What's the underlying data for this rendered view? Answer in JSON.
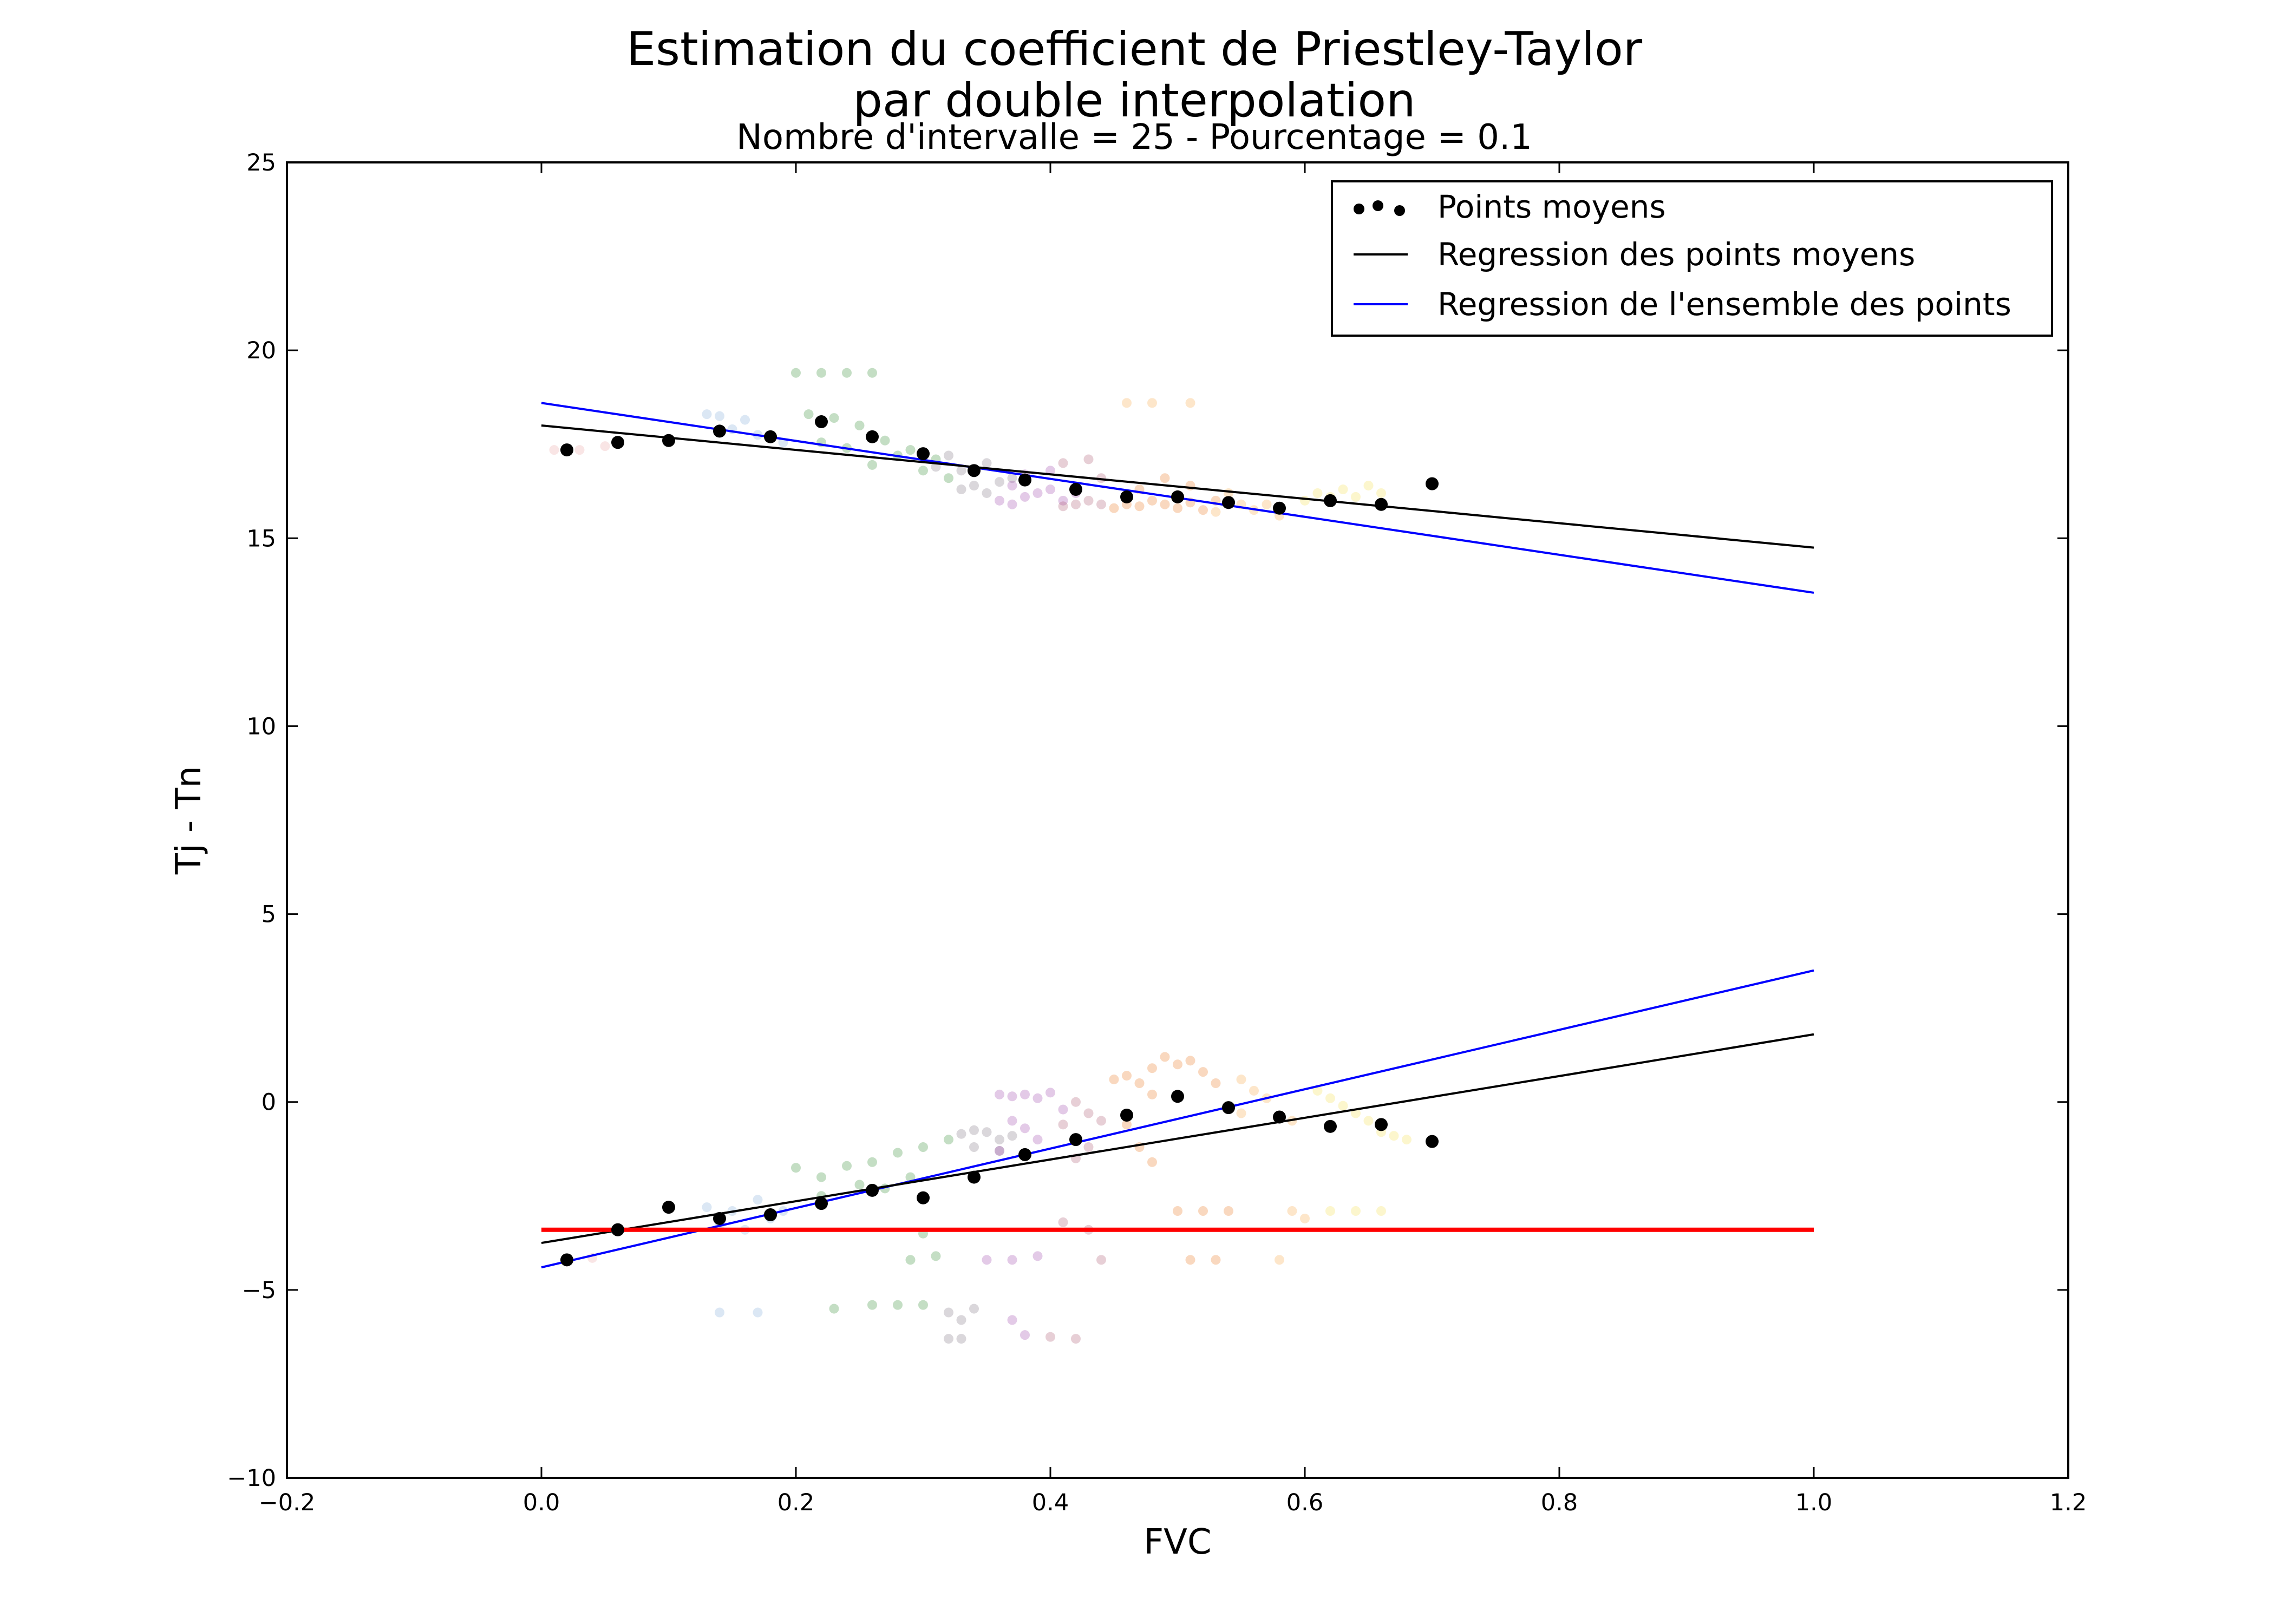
{
  "chart_data": {
    "type": "scatter",
    "title_line1": "Estimation du coefficient de Priestley-Taylor",
    "title_line2": "par     double interpolation",
    "subtitle": "Nombre d'intervalle = 25 - Pourcentage = 0.1",
    "xlabel": "FVC",
    "ylabel": "Tj - Tn",
    "xlim": [
      -0.2,
      1.2
    ],
    "ylim": [
      -10,
      25
    ],
    "xticks": [
      -0.2,
      0.0,
      0.2,
      0.4,
      0.6,
      0.8,
      1.0,
      1.2
    ],
    "xtick_labels": [
      "−0.2",
      "0.0",
      "0.2",
      "0.4",
      "0.6",
      "0.8",
      "1.0",
      "1.2"
    ],
    "yticks": [
      -10,
      -5,
      0,
      5,
      10,
      15,
      20,
      25
    ],
    "ytick_labels": [
      "−10",
      "−5",
      "0",
      "5",
      "10",
      "15",
      "20",
      "25"
    ],
    "grid": false,
    "legend_position": "top-right",
    "legend": [
      {
        "label": "Points moyens",
        "marker": "dot",
        "color": "#000000"
      },
      {
        "label": "Regression des points moyens",
        "marker": "line",
        "color": "#000000"
      },
      {
        "label": "Regression de l'ensemble des points",
        "marker": "line",
        "color": "#0000ff"
      }
    ],
    "mean_points_upper": {
      "x": [
        0.02,
        0.06,
        0.1,
        0.14,
        0.18,
        0.22,
        0.26,
        0.3,
        0.34,
        0.38,
        0.42,
        0.46,
        0.5,
        0.54,
        0.58,
        0.62,
        0.66,
        0.7
      ],
      "y": [
        17.35,
        17.55,
        17.6,
        17.85,
        17.7,
        18.1,
        17.7,
        17.25,
        16.8,
        16.55,
        16.3,
        16.1,
        16.1,
        15.95,
        15.8,
        16.0,
        15.9,
        16.45
      ]
    },
    "mean_points_lower": {
      "x": [
        0.02,
        0.06,
        0.1,
        0.14,
        0.18,
        0.22,
        0.26,
        0.3,
        0.34,
        0.38,
        0.42,
        0.46,
        0.5,
        0.54,
        0.58,
        0.62,
        0.66,
        0.7
      ],
      "y": [
        -4.2,
        -3.4,
        -2.8,
        -3.1,
        -3.0,
        -2.7,
        -2.35,
        -2.55,
        -2.0,
        -1.4,
        -1.0,
        -0.35,
        0.15,
        -0.15,
        -0.4,
        -0.65,
        -0.6,
        -1.05
      ]
    },
    "regression_mean_upper": {
      "x": [
        0.0,
        1.0
      ],
      "y": [
        18.0,
        14.75
      ]
    },
    "regression_mean_lower": {
      "x": [
        0.0,
        1.0
      ],
      "y": [
        -3.75,
        1.8
      ]
    },
    "regression_all_upper": {
      "x": [
        0.0,
        1.0
      ],
      "y": [
        18.6,
        13.55
      ]
    },
    "regression_all_lower": {
      "x": [
        0.0,
        1.0
      ],
      "y": [
        -4.4,
        3.5
      ]
    },
    "horizontal_line": {
      "x": [
        0.0,
        1.0
      ],
      "y": -3.4,
      "color": "#ff0000"
    },
    "scatter_groups": [
      {
        "color": "#e8a0a0",
        "points": [
          [
            0.01,
            17.35
          ],
          [
            0.03,
            17.35
          ],
          [
            0.05,
            17.45
          ],
          [
            0.02,
            -4.25
          ],
          [
            0.04,
            -4.15
          ]
        ]
      },
      {
        "color": "#7fa8d8",
        "points": [
          [
            0.13,
            18.3
          ],
          [
            0.14,
            18.25
          ],
          [
            0.16,
            18.15
          ],
          [
            0.15,
            17.9
          ],
          [
            0.17,
            17.75
          ],
          [
            0.19,
            17.55
          ],
          [
            0.13,
            -2.8
          ],
          [
            0.15,
            -2.9
          ],
          [
            0.17,
            -2.6
          ],
          [
            0.19,
            -2.9
          ],
          [
            0.14,
            -3.3
          ],
          [
            0.16,
            -3.4
          ],
          [
            0.18,
            -3.1
          ],
          [
            0.14,
            -5.6
          ],
          [
            0.17,
            -5.6
          ]
        ]
      },
      {
        "color": "#2c8a2c",
        "points": [
          [
            0.2,
            19.4
          ],
          [
            0.22,
            19.4
          ],
          [
            0.24,
            19.4
          ],
          [
            0.26,
            19.4
          ],
          [
            0.21,
            18.3
          ],
          [
            0.23,
            18.2
          ],
          [
            0.25,
            18.0
          ],
          [
            0.27,
            17.6
          ],
          [
            0.29,
            17.35
          ],
          [
            0.31,
            17.1
          ],
          [
            0.26,
            16.95
          ],
          [
            0.28,
            17.2
          ],
          [
            0.3,
            16.8
          ],
          [
            0.32,
            16.6
          ],
          [
            0.24,
            17.4
          ],
          [
            0.22,
            17.55
          ],
          [
            0.2,
            -1.75
          ],
          [
            0.22,
            -2.0
          ],
          [
            0.24,
            -1.7
          ],
          [
            0.26,
            -1.6
          ],
          [
            0.28,
            -1.35
          ],
          [
            0.3,
            -1.2
          ],
          [
            0.32,
            -1.0
          ],
          [
            0.25,
            -2.2
          ],
          [
            0.27,
            -2.3
          ],
          [
            0.29,
            -2.0
          ],
          [
            0.22,
            -2.5
          ],
          [
            0.26,
            -5.4
          ],
          [
            0.28,
            -5.4
          ],
          [
            0.3,
            -5.4
          ],
          [
            0.23,
            -5.5
          ],
          [
            0.31,
            -4.1
          ],
          [
            0.29,
            -4.2
          ],
          [
            0.3,
            -3.5
          ]
        ]
      },
      {
        "color": "#7a6e7e",
        "points": [
          [
            0.33,
            16.3
          ],
          [
            0.34,
            16.4
          ],
          [
            0.35,
            16.2
          ],
          [
            0.36,
            16.5
          ],
          [
            0.33,
            16.8
          ],
          [
            0.35,
            17.0
          ],
          [
            0.37,
            16.6
          ],
          [
            0.31,
            16.9
          ],
          [
            0.32,
            17.2
          ],
          [
            0.34,
            -0.75
          ],
          [
            0.35,
            -0.8
          ],
          [
            0.33,
            -0.85
          ],
          [
            0.36,
            -1.0
          ],
          [
            0.37,
            -0.9
          ],
          [
            0.34,
            -1.2
          ],
          [
            0.36,
            -1.3
          ],
          [
            0.32,
            -5.6
          ],
          [
            0.33,
            -5.8
          ],
          [
            0.34,
            -5.5
          ],
          [
            0.33,
            -6.3
          ],
          [
            0.32,
            -6.3
          ]
        ]
      },
      {
        "color": "#9b3fa8",
        "points": [
          [
            0.36,
            16.0
          ],
          [
            0.37,
            15.9
          ],
          [
            0.38,
            16.1
          ],
          [
            0.39,
            16.2
          ],
          [
            0.4,
            16.3
          ],
          [
            0.41,
            16.0
          ],
          [
            0.37,
            16.4
          ],
          [
            0.38,
            16.7
          ],
          [
            0.4,
            16.8
          ],
          [
            0.42,
            16.2
          ],
          [
            0.36,
            0.2
          ],
          [
            0.37,
            0.15
          ],
          [
            0.38,
            0.2
          ],
          [
            0.39,
            0.1
          ],
          [
            0.4,
            0.25
          ],
          [
            0.41,
            -0.2
          ],
          [
            0.37,
            -0.5
          ],
          [
            0.38,
            -0.7
          ],
          [
            0.39,
            -1.0
          ],
          [
            0.36,
            -1.3
          ],
          [
            0.35,
            -4.2
          ],
          [
            0.37,
            -4.2
          ],
          [
            0.39,
            -4.1
          ],
          [
            0.37,
            -5.8
          ],
          [
            0.38,
            -6.2
          ]
        ]
      },
      {
        "color": "#a8526a",
        "points": [
          [
            0.41,
            15.85
          ],
          [
            0.42,
            15.9
          ],
          [
            0.43,
            16.0
          ],
          [
            0.44,
            15.9
          ],
          [
            0.42,
            16.3
          ],
          [
            0.44,
            16.6
          ],
          [
            0.41,
            17.0
          ],
          [
            0.43,
            17.1
          ],
          [
            0.42,
            0.0
          ],
          [
            0.43,
            -0.3
          ],
          [
            0.44,
            -0.5
          ],
          [
            0.41,
            -0.6
          ],
          [
            0.43,
            -1.2
          ],
          [
            0.42,
            -1.5
          ],
          [
            0.41,
            -3.2
          ],
          [
            0.43,
            -3.4
          ],
          [
            0.44,
            -4.2
          ],
          [
            0.42,
            -6.3
          ],
          [
            0.4,
            -6.25
          ]
        ]
      },
      {
        "color": "#e8731a",
        "points": [
          [
            0.45,
            15.8
          ],
          [
            0.46,
            15.9
          ],
          [
            0.47,
            15.85
          ],
          [
            0.48,
            16.0
          ],
          [
            0.49,
            15.9
          ],
          [
            0.5,
            15.8
          ],
          [
            0.51,
            15.95
          ],
          [
            0.52,
            15.75
          ],
          [
            0.53,
            16.0
          ],
          [
            0.47,
            16.3
          ],
          [
            0.49,
            16.6
          ],
          [
            0.51,
            16.4
          ],
          [
            0.45,
            0.6
          ],
          [
            0.46,
            0.7
          ],
          [
            0.47,
            0.5
          ],
          [
            0.48,
            0.9
          ],
          [
            0.49,
            1.2
          ],
          [
            0.5,
            1.0
          ],
          [
            0.51,
            1.1
          ],
          [
            0.52,
            0.8
          ],
          [
            0.53,
            0.5
          ],
          [
            0.48,
            0.2
          ],
          [
            0.46,
            -0.6
          ],
          [
            0.47,
            -1.2
          ],
          [
            0.48,
            -1.6
          ],
          [
            0.5,
            -2.9
          ],
          [
            0.52,
            -2.9
          ],
          [
            0.54,
            -2.9
          ],
          [
            0.51,
            -4.2
          ],
          [
            0.53,
            -4.2
          ]
        ]
      },
      {
        "color": "#f7a440",
        "points": [
          [
            0.46,
            18.6
          ],
          [
            0.48,
            18.6
          ],
          [
            0.51,
            18.6
          ],
          [
            0.54,
            16.2
          ],
          [
            0.55,
            15.9
          ],
          [
            0.56,
            15.75
          ],
          [
            0.57,
            15.9
          ],
          [
            0.58,
            15.6
          ],
          [
            0.53,
            15.7
          ],
          [
            0.55,
            0.6
          ],
          [
            0.56,
            0.3
          ],
          [
            0.57,
            0.1
          ],
          [
            0.55,
            -0.3
          ],
          [
            0.58,
            -0.4
          ],
          [
            0.59,
            -0.5
          ],
          [
            0.59,
            -2.9
          ],
          [
            0.6,
            -3.1
          ],
          [
            0.58,
            -4.2
          ]
        ]
      },
      {
        "color": "#f4e04a",
        "points": [
          [
            0.6,
            16.0
          ],
          [
            0.61,
            16.2
          ],
          [
            0.62,
            16.1
          ],
          [
            0.63,
            16.3
          ],
          [
            0.64,
            16.1
          ],
          [
            0.65,
            16.4
          ],
          [
            0.66,
            16.2
          ],
          [
            0.61,
            0.3
          ],
          [
            0.62,
            0.1
          ],
          [
            0.63,
            -0.1
          ],
          [
            0.64,
            -0.3
          ],
          [
            0.65,
            -0.5
          ],
          [
            0.66,
            -0.8
          ],
          [
            0.67,
            -0.9
          ],
          [
            0.68,
            -1.0
          ],
          [
            0.62,
            -2.9
          ],
          [
            0.64,
            -2.9
          ],
          [
            0.66,
            -2.9
          ]
        ]
      }
    ]
  }
}
